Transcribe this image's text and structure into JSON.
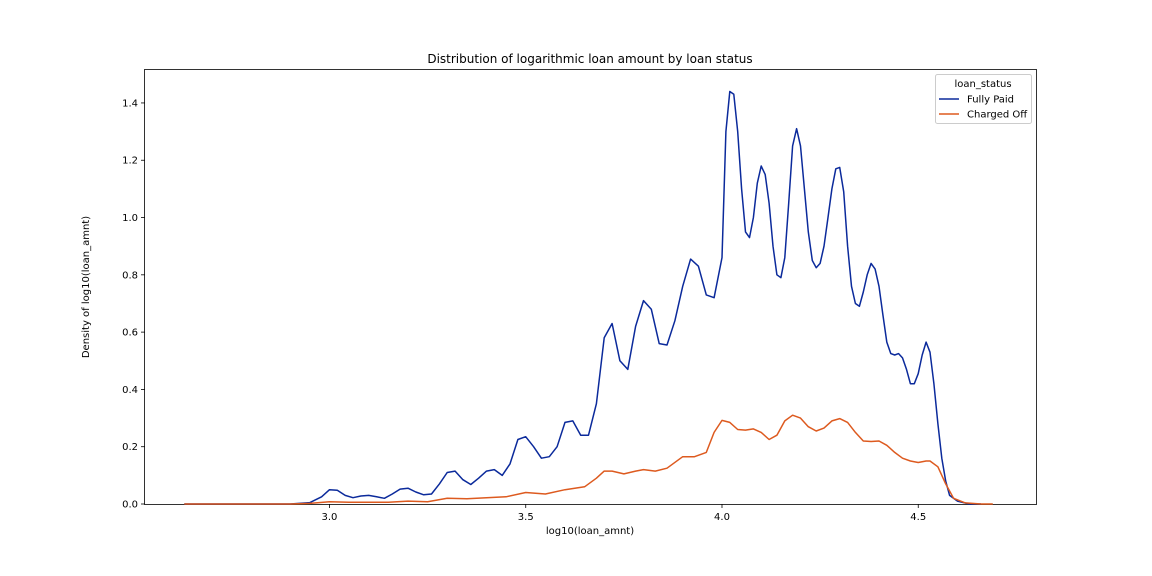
{
  "chart_data": {
    "type": "line",
    "title": "Distribution of logarithmic loan amount by loan status",
    "xlabel": "log10(loan_amnt)",
    "ylabel": "Density of log10(loan_amnt)",
    "xlim": [
      2.53,
      4.8
    ],
    "ylim": [
      0,
      1.515
    ],
    "x_ticks": [
      3.0,
      3.5,
      4.0,
      4.5
    ],
    "x_tick_labels": [
      "3.0",
      "3.5",
      "4.0",
      "4.5"
    ],
    "y_ticks": [
      0.0,
      0.2,
      0.4,
      0.6,
      0.8,
      1.0,
      1.2,
      1.4
    ],
    "y_tick_labels": [
      "0.0",
      "0.2",
      "0.4",
      "0.6",
      "0.8",
      "1.0",
      "1.2",
      "1.4"
    ],
    "grid": false,
    "legend": {
      "title": "loan_status",
      "placement": "top-right"
    },
    "series": [
      {
        "name": "Fully Paid",
        "color": "#0b2a9b",
        "points": [
          [
            2.63,
            0.0
          ],
          [
            2.9,
            0.0
          ],
          [
            2.95,
            0.005
          ],
          [
            2.98,
            0.025
          ],
          [
            3.0,
            0.05
          ],
          [
            3.02,
            0.048
          ],
          [
            3.04,
            0.03
          ],
          [
            3.06,
            0.022
          ],
          [
            3.08,
            0.028
          ],
          [
            3.1,
            0.03
          ],
          [
            3.12,
            0.025
          ],
          [
            3.14,
            0.02
          ],
          [
            3.16,
            0.035
          ],
          [
            3.18,
            0.052
          ],
          [
            3.2,
            0.055
          ],
          [
            3.22,
            0.042
          ],
          [
            3.24,
            0.032
          ],
          [
            3.26,
            0.035
          ],
          [
            3.28,
            0.07
          ],
          [
            3.3,
            0.11
          ],
          [
            3.32,
            0.115
          ],
          [
            3.34,
            0.085
          ],
          [
            3.36,
            0.068
          ],
          [
            3.38,
            0.09
          ],
          [
            3.4,
            0.115
          ],
          [
            3.42,
            0.12
          ],
          [
            3.44,
            0.1
          ],
          [
            3.46,
            0.14
          ],
          [
            3.48,
            0.225
          ],
          [
            3.5,
            0.235
          ],
          [
            3.52,
            0.2
          ],
          [
            3.54,
            0.16
          ],
          [
            3.56,
            0.165
          ],
          [
            3.58,
            0.2
          ],
          [
            3.6,
            0.285
          ],
          [
            3.62,
            0.29
          ],
          [
            3.64,
            0.24
          ],
          [
            3.66,
            0.24
          ],
          [
            3.68,
            0.35
          ],
          [
            3.7,
            0.58
          ],
          [
            3.72,
            0.63
          ],
          [
            3.74,
            0.5
          ],
          [
            3.76,
            0.47
          ],
          [
            3.78,
            0.62
          ],
          [
            3.8,
            0.71
          ],
          [
            3.82,
            0.68
          ],
          [
            3.84,
            0.56
          ],
          [
            3.86,
            0.555
          ],
          [
            3.88,
            0.64
          ],
          [
            3.9,
            0.76
          ],
          [
            3.92,
            0.855
          ],
          [
            3.94,
            0.83
          ],
          [
            3.96,
            0.73
          ],
          [
            3.98,
            0.72
          ],
          [
            4.0,
            0.86
          ],
          [
            4.01,
            1.3
          ],
          [
            4.02,
            1.44
          ],
          [
            4.03,
            1.43
          ],
          [
            4.04,
            1.3
          ],
          [
            4.05,
            1.1
          ],
          [
            4.06,
            0.95
          ],
          [
            4.07,
            0.93
          ],
          [
            4.08,
            1.0
          ],
          [
            4.09,
            1.12
          ],
          [
            4.1,
            1.18
          ],
          [
            4.11,
            1.15
          ],
          [
            4.12,
            1.05
          ],
          [
            4.13,
            0.9
          ],
          [
            4.14,
            0.8
          ],
          [
            4.15,
            0.79
          ],
          [
            4.16,
            0.86
          ],
          [
            4.17,
            1.05
          ],
          [
            4.18,
            1.25
          ],
          [
            4.19,
            1.31
          ],
          [
            4.2,
            1.25
          ],
          [
            4.21,
            1.1
          ],
          [
            4.22,
            0.95
          ],
          [
            4.23,
            0.85
          ],
          [
            4.24,
            0.825
          ],
          [
            4.25,
            0.84
          ],
          [
            4.26,
            0.9
          ],
          [
            4.27,
            1.0
          ],
          [
            4.28,
            1.1
          ],
          [
            4.29,
            1.17
          ],
          [
            4.3,
            1.175
          ],
          [
            4.31,
            1.09
          ],
          [
            4.32,
            0.9
          ],
          [
            4.33,
            0.76
          ],
          [
            4.34,
            0.7
          ],
          [
            4.35,
            0.69
          ],
          [
            4.36,
            0.74
          ],
          [
            4.37,
            0.8
          ],
          [
            4.38,
            0.84
          ],
          [
            4.39,
            0.82
          ],
          [
            4.4,
            0.76
          ],
          [
            4.41,
            0.66
          ],
          [
            4.42,
            0.565
          ],
          [
            4.43,
            0.525
          ],
          [
            4.44,
            0.52
          ],
          [
            4.45,
            0.525
          ],
          [
            4.46,
            0.51
          ],
          [
            4.47,
            0.47
          ],
          [
            4.48,
            0.42
          ],
          [
            4.49,
            0.42
          ],
          [
            4.5,
            0.455
          ],
          [
            4.51,
            0.52
          ],
          [
            4.52,
            0.565
          ],
          [
            4.53,
            0.53
          ],
          [
            4.54,
            0.42
          ],
          [
            4.55,
            0.28
          ],
          [
            4.56,
            0.16
          ],
          [
            4.57,
            0.08
          ],
          [
            4.58,
            0.03
          ],
          [
            4.6,
            0.01
          ],
          [
            4.63,
            0.0
          ],
          [
            4.66,
            0.0
          ]
        ]
      },
      {
        "name": "Charged Off",
        "color": "#dd5a1f",
        "points": [
          [
            2.63,
            0.0
          ],
          [
            2.9,
            0.0
          ],
          [
            2.95,
            0.002
          ],
          [
            3.0,
            0.008
          ],
          [
            3.05,
            0.006
          ],
          [
            3.1,
            0.006
          ],
          [
            3.15,
            0.006
          ],
          [
            3.2,
            0.01
          ],
          [
            3.25,
            0.008
          ],
          [
            3.3,
            0.02
          ],
          [
            3.35,
            0.018
          ],
          [
            3.4,
            0.022
          ],
          [
            3.45,
            0.025
          ],
          [
            3.5,
            0.04
          ],
          [
            3.55,
            0.035
          ],
          [
            3.6,
            0.05
          ],
          [
            3.65,
            0.06
          ],
          [
            3.68,
            0.09
          ],
          [
            3.7,
            0.115
          ],
          [
            3.72,
            0.115
          ],
          [
            3.75,
            0.105
          ],
          [
            3.78,
            0.115
          ],
          [
            3.8,
            0.12
          ],
          [
            3.83,
            0.115
          ],
          [
            3.86,
            0.125
          ],
          [
            3.9,
            0.165
          ],
          [
            3.93,
            0.165
          ],
          [
            3.96,
            0.18
          ],
          [
            3.98,
            0.25
          ],
          [
            4.0,
            0.292
          ],
          [
            4.02,
            0.285
          ],
          [
            4.04,
            0.26
          ],
          [
            4.06,
            0.258
          ],
          [
            4.08,
            0.262
          ],
          [
            4.1,
            0.25
          ],
          [
            4.12,
            0.225
          ],
          [
            4.14,
            0.24
          ],
          [
            4.16,
            0.29
          ],
          [
            4.18,
            0.31
          ],
          [
            4.2,
            0.3
          ],
          [
            4.22,
            0.27
          ],
          [
            4.24,
            0.255
          ],
          [
            4.26,
            0.265
          ],
          [
            4.28,
            0.29
          ],
          [
            4.3,
            0.298
          ],
          [
            4.32,
            0.285
          ],
          [
            4.34,
            0.25
          ],
          [
            4.36,
            0.22
          ],
          [
            4.38,
            0.218
          ],
          [
            4.4,
            0.22
          ],
          [
            4.42,
            0.205
          ],
          [
            4.44,
            0.18
          ],
          [
            4.46,
            0.16
          ],
          [
            4.48,
            0.15
          ],
          [
            4.5,
            0.145
          ],
          [
            4.52,
            0.15
          ],
          [
            4.53,
            0.15
          ],
          [
            4.55,
            0.13
          ],
          [
            4.57,
            0.07
          ],
          [
            4.59,
            0.02
          ],
          [
            4.62,
            0.004
          ],
          [
            4.66,
            0.0
          ],
          [
            4.69,
            0.0
          ]
        ]
      }
    ]
  }
}
